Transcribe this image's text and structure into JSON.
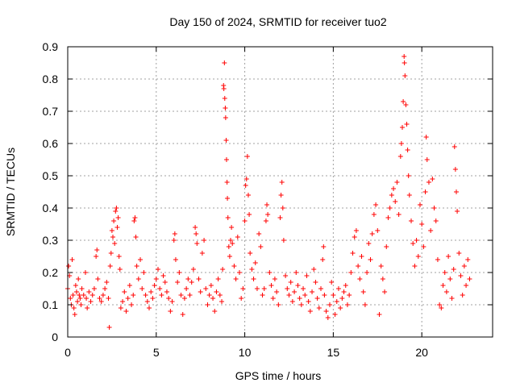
{
  "chart_data": {
    "type": "scatter",
    "title": "Day 150 of 2024, SRMTID for receiver tuo2",
    "xlabel": "GPS time / hours",
    "ylabel": "SRMTID / TECUs",
    "xlim": [
      0,
      24
    ],
    "ylim": [
      0,
      0.9
    ],
    "xticks": [
      0,
      5,
      10,
      15,
      20
    ],
    "xtick_labels": [
      "0",
      "5",
      "10",
      "15",
      "20"
    ],
    "yticks": [
      0,
      0.1,
      0.2,
      0.3,
      0.4,
      0.5,
      0.6,
      0.7,
      0.8,
      0.9
    ],
    "ytick_labels": [
      "0",
      "0.1",
      "0.2",
      "0.3",
      "0.4",
      "0.5",
      "0.6",
      "0.7",
      "0.8",
      "0.9"
    ],
    "grid": true,
    "marker": "+",
    "color": "#ff0000",
    "series": [
      {
        "name": "SRMTID",
        "points": [
          [
            0.0,
            0.15
          ],
          [
            0.05,
            0.22
          ],
          [
            0.1,
            0.19
          ],
          [
            0.15,
            0.12
          ],
          [
            0.2,
            0.1
          ],
          [
            0.25,
            0.24
          ],
          [
            0.3,
            0.13
          ],
          [
            0.35,
            0.09
          ],
          [
            0.4,
            0.07
          ],
          [
            0.45,
            0.16
          ],
          [
            0.5,
            0.14
          ],
          [
            0.55,
            0.11
          ],
          [
            0.6,
            0.18
          ],
          [
            0.65,
            0.13
          ],
          [
            0.7,
            0.12
          ],
          [
            0.75,
            0.1
          ],
          [
            0.8,
            0.15
          ],
          [
            0.9,
            0.13
          ],
          [
            1.0,
            0.2
          ],
          [
            1.05,
            0.12
          ],
          [
            1.1,
            0.09
          ],
          [
            1.2,
            0.14
          ],
          [
            1.3,
            0.11
          ],
          [
            1.4,
            0.13
          ],
          [
            1.5,
            0.15
          ],
          [
            1.6,
            0.25
          ],
          [
            1.65,
            0.27
          ],
          [
            1.7,
            0.18
          ],
          [
            1.8,
            0.12
          ],
          [
            1.9,
            0.11
          ],
          [
            2.0,
            0.13
          ],
          [
            2.1,
            0.15
          ],
          [
            2.2,
            0.17
          ],
          [
            2.3,
            0.12
          ],
          [
            2.35,
            0.03
          ],
          [
            2.4,
            0.22
          ],
          [
            2.45,
            0.26
          ],
          [
            2.5,
            0.33
          ],
          [
            2.55,
            0.31
          ],
          [
            2.6,
            0.36
          ],
          [
            2.65,
            0.29
          ],
          [
            2.7,
            0.39
          ],
          [
            2.75,
            0.4
          ],
          [
            2.8,
            0.34
          ],
          [
            2.85,
            0.37
          ],
          [
            2.9,
            0.25
          ],
          [
            2.95,
            0.21
          ],
          [
            3.0,
            0.09
          ],
          [
            3.1,
            0.11
          ],
          [
            3.2,
            0.14
          ],
          [
            3.3,
            0.08
          ],
          [
            3.4,
            0.12
          ],
          [
            3.5,
            0.16
          ],
          [
            3.6,
            0.1
          ],
          [
            3.7,
            0.13
          ],
          [
            3.75,
            0.36
          ],
          [
            3.8,
            0.37
          ],
          [
            3.85,
            0.31
          ],
          [
            3.9,
            0.22
          ],
          [
            4.0,
            0.18
          ],
          [
            4.1,
            0.24
          ],
          [
            4.2,
            0.15
          ],
          [
            4.3,
            0.2
          ],
          [
            4.4,
            0.13
          ],
          [
            4.5,
            0.11
          ],
          [
            4.6,
            0.09
          ],
          [
            4.7,
            0.14
          ],
          [
            4.8,
            0.12
          ],
          [
            4.9,
            0.16
          ],
          [
            5.0,
            0.18
          ],
          [
            5.1,
            0.21
          ],
          [
            5.2,
            0.15
          ],
          [
            5.3,
            0.13
          ],
          [
            5.4,
            0.19
          ],
          [
            5.5,
            0.17
          ],
          [
            5.6,
            0.14
          ],
          [
            5.7,
            0.12
          ],
          [
            5.8,
            0.08
          ],
          [
            5.9,
            0.11
          ],
          [
            6.0,
            0.3
          ],
          [
            6.05,
            0.32
          ],
          [
            6.1,
            0.24
          ],
          [
            6.2,
            0.17
          ],
          [
            6.3,
            0.2
          ],
          [
            6.4,
            0.13
          ],
          [
            6.5,
            0.07
          ],
          [
            6.6,
            0.12
          ],
          [
            6.7,
            0.15
          ],
          [
            6.8,
            0.18
          ],
          [
            6.9,
            0.13
          ],
          [
            7.0,
            0.17
          ],
          [
            7.1,
            0.21
          ],
          [
            7.2,
            0.34
          ],
          [
            7.25,
            0.32
          ],
          [
            7.3,
            0.29
          ],
          [
            7.4,
            0.18
          ],
          [
            7.5,
            0.14
          ],
          [
            7.6,
            0.26
          ],
          [
            7.7,
            0.3
          ],
          [
            7.8,
            0.15
          ],
          [
            7.9,
            0.1
          ],
          [
            8.0,
            0.13
          ],
          [
            8.1,
            0.16
          ],
          [
            8.2,
            0.12
          ],
          [
            8.3,
            0.08
          ],
          [
            8.4,
            0.14
          ],
          [
            8.5,
            0.18
          ],
          [
            8.6,
            0.13
          ],
          [
            8.7,
            0.11
          ],
          [
            8.75,
            0.21
          ],
          [
            8.8,
            0.78
          ],
          [
            8.82,
            0.77
          ],
          [
            8.85,
            0.85
          ],
          [
            8.87,
            0.74
          ],
          [
            8.9,
            0.71
          ],
          [
            8.92,
            0.68
          ],
          [
            8.95,
            0.61
          ],
          [
            8.97,
            0.55
          ],
          [
            9.0,
            0.48
          ],
          [
            9.02,
            0.43
          ],
          [
            9.05,
            0.37
          ],
          [
            9.1,
            0.28
          ],
          [
            9.15,
            0.25
          ],
          [
            9.2,
            0.3
          ],
          [
            9.25,
            0.34
          ],
          [
            9.3,
            0.29
          ],
          [
            9.4,
            0.22
          ],
          [
            9.5,
            0.18
          ],
          [
            9.6,
            0.31
          ],
          [
            9.7,
            0.2
          ],
          [
            9.8,
            0.12
          ],
          [
            9.9,
            0.15
          ],
          [
            10.0,
            0.36
          ],
          [
            10.05,
            0.47
          ],
          [
            10.1,
            0.49
          ],
          [
            10.15,
            0.56
          ],
          [
            10.2,
            0.44
          ],
          [
            10.25,
            0.38
          ],
          [
            10.3,
            0.26
          ],
          [
            10.4,
            0.21
          ],
          [
            10.5,
            0.18
          ],
          [
            10.6,
            0.23
          ],
          [
            10.7,
            0.15
          ],
          [
            10.8,
            0.32
          ],
          [
            10.9,
            0.28
          ],
          [
            11.0,
            0.13
          ],
          [
            11.1,
            0.15
          ],
          [
            11.2,
            0.36
          ],
          [
            11.25,
            0.41
          ],
          [
            11.3,
            0.38
          ],
          [
            11.4,
            0.2
          ],
          [
            11.5,
            0.16
          ],
          [
            11.6,
            0.12
          ],
          [
            11.7,
            0.18
          ],
          [
            11.8,
            0.14
          ],
          [
            11.9,
            0.1
          ],
          [
            12.0,
            0.37
          ],
          [
            12.05,
            0.44
          ],
          [
            12.1,
            0.48
          ],
          [
            12.15,
            0.4
          ],
          [
            12.2,
            0.3
          ],
          [
            12.3,
            0.19
          ],
          [
            12.4,
            0.15
          ],
          [
            12.5,
            0.13
          ],
          [
            12.6,
            0.17
          ],
          [
            12.7,
            0.11
          ],
          [
            12.8,
            0.14
          ],
          [
            12.9,
            0.2
          ],
          [
            13.0,
            0.16
          ],
          [
            13.1,
            0.12
          ],
          [
            13.2,
            0.1
          ],
          [
            13.3,
            0.15
          ],
          [
            13.4,
            0.13
          ],
          [
            13.5,
            0.19
          ],
          [
            13.6,
            0.11
          ],
          [
            13.7,
            0.08
          ],
          [
            13.8,
            0.14
          ],
          [
            13.9,
            0.21
          ],
          [
            14.0,
            0.17
          ],
          [
            14.1,
            0.12
          ],
          [
            14.2,
            0.09
          ],
          [
            14.3,
            0.15
          ],
          [
            14.4,
            0.24
          ],
          [
            14.45,
            0.28
          ],
          [
            14.5,
            0.13
          ],
          [
            14.6,
            0.08
          ],
          [
            14.7,
            0.06
          ],
          [
            14.8,
            0.1
          ],
          [
            14.9,
            0.17
          ],
          [
            15.0,
            0.13
          ],
          [
            15.1,
            0.07
          ],
          [
            15.2,
            0.11
          ],
          [
            15.3,
            0.15
          ],
          [
            15.4,
            0.09
          ],
          [
            15.5,
            0.12
          ],
          [
            15.6,
            0.14
          ],
          [
            15.7,
            0.16
          ],
          [
            15.8,
            0.1
          ],
          [
            15.9,
            0.13
          ],
          [
            16.0,
            0.2
          ],
          [
            16.1,
            0.26
          ],
          [
            16.2,
            0.31
          ],
          [
            16.3,
            0.33
          ],
          [
            16.4,
            0.22
          ],
          [
            16.5,
            0.18
          ],
          [
            16.6,
            0.25
          ],
          [
            16.7,
            0.14
          ],
          [
            16.8,
            0.1
          ],
          [
            16.9,
            0.2
          ],
          [
            17.0,
            0.29
          ],
          [
            17.1,
            0.24
          ],
          [
            17.2,
            0.32
          ],
          [
            17.3,
            0.38
          ],
          [
            17.4,
            0.41
          ],
          [
            17.5,
            0.33
          ],
          [
            17.6,
            0.07
          ],
          [
            17.7,
            0.22
          ],
          [
            17.8,
            0.18
          ],
          [
            17.9,
            0.14
          ],
          [
            18.0,
            0.28
          ],
          [
            18.1,
            0.37
          ],
          [
            18.2,
            0.4
          ],
          [
            18.3,
            0.44
          ],
          [
            18.4,
            0.46
          ],
          [
            18.5,
            0.42
          ],
          [
            18.6,
            0.48
          ],
          [
            18.7,
            0.38
          ],
          [
            18.8,
            0.56
          ],
          [
            18.85,
            0.6
          ],
          [
            18.9,
            0.65
          ],
          [
            18.95,
            0.73
          ],
          [
            19.0,
            0.87
          ],
          [
            19.02,
            0.85
          ],
          [
            19.05,
            0.81
          ],
          [
            19.1,
            0.72
          ],
          [
            19.15,
            0.66
          ],
          [
            19.2,
            0.58
          ],
          [
            19.25,
            0.5
          ],
          [
            19.3,
            0.44
          ],
          [
            19.4,
            0.36
          ],
          [
            19.5,
            0.29
          ],
          [
            19.6,
            0.22
          ],
          [
            19.7,
            0.3
          ],
          [
            19.8,
            0.25
          ],
          [
            19.9,
            0.41
          ],
          [
            20.0,
            0.35
          ],
          [
            20.1,
            0.28
          ],
          [
            20.2,
            0.45
          ],
          [
            20.25,
            0.62
          ],
          [
            20.3,
            0.55
          ],
          [
            20.4,
            0.48
          ],
          [
            20.5,
            0.33
          ],
          [
            20.6,
            0.49
          ],
          [
            20.7,
            0.4
          ],
          [
            20.8,
            0.36
          ],
          [
            20.9,
            0.24
          ],
          [
            21.0,
            0.1
          ],
          [
            21.1,
            0.09
          ],
          [
            21.2,
            0.16
          ],
          [
            21.3,
            0.2
          ],
          [
            21.4,
            0.14
          ],
          [
            21.5,
            0.25
          ],
          [
            21.6,
            0.18
          ],
          [
            21.7,
            0.12
          ],
          [
            21.8,
            0.21
          ],
          [
            21.85,
            0.59
          ],
          [
            21.9,
            0.52
          ],
          [
            21.95,
            0.45
          ],
          [
            22.0,
            0.39
          ],
          [
            22.1,
            0.26
          ],
          [
            22.2,
            0.19
          ],
          [
            22.3,
            0.13
          ],
          [
            22.4,
            0.22
          ],
          [
            22.5,
            0.16
          ],
          [
            22.6,
            0.24
          ],
          [
            22.7,
            0.18
          ]
        ]
      }
    ]
  }
}
